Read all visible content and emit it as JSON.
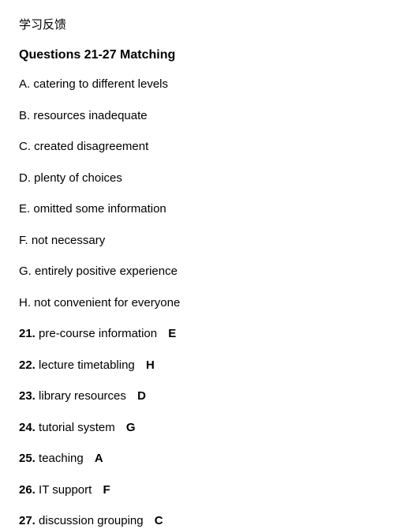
{
  "header": "学习反馈",
  "title": "Questions 21-27 Matching",
  "options": [
    {
      "letter": "A.",
      "text": "catering to different levels"
    },
    {
      "letter": "B.",
      "text": "resources inadequate"
    },
    {
      "letter": "C.",
      "text": "created disagreement"
    },
    {
      "letter": "D.",
      "text": "plenty of choices"
    },
    {
      "letter": "E.",
      "text": "omitted some information"
    },
    {
      "letter": "F.",
      "text": "not necessary"
    },
    {
      "letter": "G.",
      "text": "entirely positive experience"
    },
    {
      "letter": "H.",
      "text": "not convenient for everyone"
    }
  ],
  "questions": [
    {
      "num": "21.",
      "text": "pre-course information",
      "answer": "E"
    },
    {
      "num": "22.",
      "text": "lecture timetabling",
      "answer": "H"
    },
    {
      "num": "23.",
      "text": "library resources",
      "answer": "D"
    },
    {
      "num": "24.",
      "text": "tutorial system",
      "answer": "G"
    },
    {
      "num": "25.",
      "text": "teaching",
      "answer": "A"
    },
    {
      "num": "26.",
      "text": "IT support",
      "answer": "F"
    },
    {
      "num": "27.",
      "text": "discussion grouping",
      "answer": "C"
    }
  ],
  "colors": {
    "background": "#ffffff",
    "text": "#000000"
  },
  "typography": {
    "font_family": "Arial, Helvetica, sans-serif",
    "header_fontsize": 15,
    "title_fontsize": 16,
    "body_fontsize": 15,
    "title_weight": "bold",
    "num_weight": "bold",
    "answer_weight": "bold"
  }
}
